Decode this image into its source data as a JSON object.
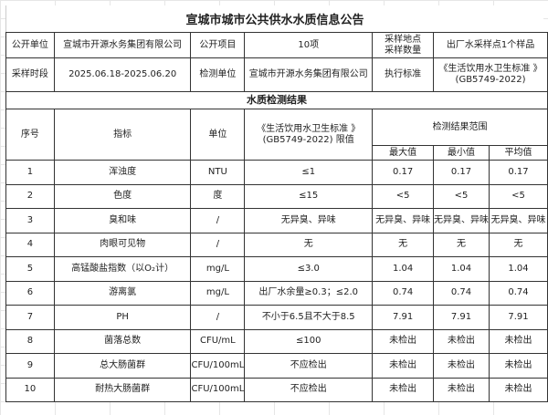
{
  "title": "宣城市城市公共供水水质信息公告",
  "info": {
    "row1": [
      "公开单位",
      "宣城市开源水务集团有限公司",
      "公开项目",
      "10项",
      "采样地点\n采样数量",
      "出厂水采样点1个样品"
    ],
    "row2": [
      "采样时段",
      "2025.06.18-2025.06.20",
      "检测单位",
      "宣城市开源水务集团有限公司",
      "执行标准",
      "《生活饮用水卫生标准 》\n(GB5749-2022)"
    ]
  },
  "section_title": "水质检测结果",
  "table": {
    "headers": {
      "index": "序号",
      "indicator": "指标",
      "unit": "单位",
      "limit": "《生活饮用水卫生标准 》\n(GB5749-2022) 限值",
      "range": "检测结果范围",
      "max": "最大值",
      "min": "最小值",
      "avg": "平均值"
    },
    "rows": [
      [
        "1",
        "浑浊度",
        "NTU",
        "≤1",
        "0.17",
        "0.17",
        "0.17"
      ],
      [
        "2",
        "色度",
        "度",
        "≤15",
        "<5",
        "<5",
        "<5"
      ],
      [
        "3",
        "臭和味",
        "/",
        "无异臭、异味",
        "无异臭、异味",
        "无异臭、异味",
        "无异臭、异味"
      ],
      [
        "4",
        "肉眼可见物",
        "/",
        "无",
        "无",
        "无",
        "无"
      ],
      [
        "5",
        "高锰酸盐指数（以O₂计）",
        "mg/L",
        "≤3.0",
        "1.04",
        "1.04",
        "1.04"
      ],
      [
        "6",
        "游离氯",
        "mg/L",
        "出厂水余量≥0.3；≤2.0",
        "0.74",
        "0.74",
        "0.74"
      ],
      [
        "7",
        "PH",
        "/",
        "不小于6.5且不大于8.5",
        "7.91",
        "7.91",
        "7.91"
      ],
      [
        "8",
        "菌落总数",
        "CFU/mL",
        "≤100",
        "未检出",
        "未检出",
        "未检出"
      ],
      [
        "9",
        "总大肠菌群",
        "CFU/100mL",
        "不应检出",
        "未检出",
        "未检出",
        "未检出"
      ],
      [
        "10",
        "耐热大肠菌群",
        "CFU/100mL",
        "不应检出",
        "未检出",
        "未检出",
        "未检出"
      ]
    ]
  }
}
